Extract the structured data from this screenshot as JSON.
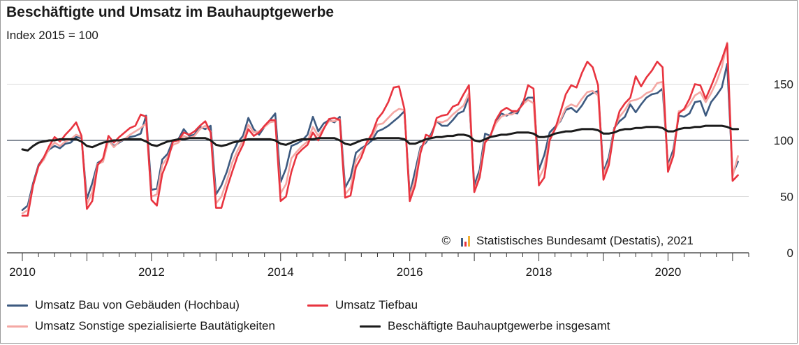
{
  "chart_data": {
    "type": "line",
    "title": "Beschäftigte und Umsatz im Bauhauptgewerbe",
    "subtitle": "Index 2015 = 100",
    "source": "Statistisches Bundesamt (Destatis), 2021",
    "copyright_symbol": "©",
    "x_tick_labels": [
      "2010",
      "2012",
      "2014",
      "2016",
      "2018",
      "2020"
    ],
    "xlim": [
      2010.0,
      2021.25
    ],
    "y_ticks": [
      0,
      50,
      100,
      150
    ],
    "ylim": [
      0,
      190
    ],
    "reference_line": 100,
    "grid": "horizontal",
    "legend_position": "bottom",
    "x": [
      2010.0,
      2010.0833,
      2010.1667,
      2010.25,
      2010.3333,
      2010.4167,
      2010.5,
      2010.5833,
      2010.6667,
      2010.75,
      2010.8333,
      2010.9167,
      2011.0,
      2011.0833,
      2011.1667,
      2011.25,
      2011.3333,
      2011.4167,
      2011.5,
      2011.5833,
      2011.6667,
      2011.75,
      2011.8333,
      2011.9167,
      2012.0,
      2012.0833,
      2012.1667,
      2012.25,
      2012.3333,
      2012.4167,
      2012.5,
      2012.5833,
      2012.6667,
      2012.75,
      2012.8333,
      2012.9167,
      2013.0,
      2013.0833,
      2013.1667,
      2013.25,
      2013.3333,
      2013.4167,
      2013.5,
      2013.5833,
      2013.6667,
      2013.75,
      2013.8333,
      2013.9167,
      2014.0,
      2014.0833,
      2014.1667,
      2014.25,
      2014.3333,
      2014.4167,
      2014.5,
      2014.5833,
      2014.6667,
      2014.75,
      2014.8333,
      2014.9167,
      2015.0,
      2015.0833,
      2015.1667,
      2015.25,
      2015.3333,
      2015.4167,
      2015.5,
      2015.5833,
      2015.6667,
      2015.75,
      2015.8333,
      2015.9167,
      2016.0,
      2016.0833,
      2016.1667,
      2016.25,
      2016.3333,
      2016.4167,
      2016.5,
      2016.5833,
      2016.6667,
      2016.75,
      2016.8333,
      2016.9167,
      2017.0,
      2017.0833,
      2017.1667,
      2017.25,
      2017.3333,
      2017.4167,
      2017.5,
      2017.5833,
      2017.6667,
      2017.75,
      2017.8333,
      2017.9167,
      2018.0,
      2018.0833,
      2018.1667,
      2018.25,
      2018.3333,
      2018.4167,
      2018.5,
      2018.5833,
      2018.6667,
      2018.75,
      2018.8333,
      2018.9167,
      2019.0,
      2019.0833,
      2019.1667,
      2019.25,
      2019.3333,
      2019.4167,
      2019.5,
      2019.5833,
      2019.6667,
      2019.75,
      2019.8333,
      2019.9167,
      2020.0,
      2020.0833,
      2020.1667,
      2020.25,
      2020.3333,
      2020.4167,
      2020.5,
      2020.5833,
      2020.6667,
      2020.75,
      2020.8333,
      2020.9167,
      2021.0,
      2021.0833
    ],
    "series": [
      {
        "name": "Umsatz Bau von Gebäuden (Hochbau)",
        "color": "#3d5a80",
        "values": [
          38,
          42,
          62,
          78,
          85,
          92,
          95,
          93,
          97,
          98,
          103,
          102,
          48,
          62,
          80,
          83,
          100,
          95,
          98,
          101,
          103,
          104,
          106,
          122,
          56,
          57,
          83,
          88,
          100,
          101,
          110,
          104,
          105,
          112,
          110,
          113,
          52,
          60,
          72,
          88,
          98,
          104,
          120,
          110,
          105,
          112,
          118,
          124,
          63,
          75,
          95,
          97,
          100,
          105,
          121,
          108,
          115,
          118,
          116,
          121,
          58,
          67,
          89,
          93,
          96,
          100,
          108,
          110,
          113,
          117,
          121,
          126,
          52,
          73,
          94,
          98,
          106,
          117,
          113,
          113,
          118,
          124,
          126,
          139,
          60,
          74,
          106,
          104,
          117,
          124,
          122,
          125,
          124,
          134,
          138,
          138,
          74,
          87,
          107,
          112,
          117,
          127,
          129,
          125,
          131,
          139,
          142,
          144,
          72,
          85,
          111,
          117,
          121,
          132,
          125,
          132,
          138,
          141,
          142,
          146,
          78,
          92,
          122,
          121,
          124,
          134,
          135,
          122,
          134,
          140,
          147,
          168,
          70,
          81
        ]
      },
      {
        "name": "Umsatz Tiefbau",
        "color": "#e8343f",
        "values": [
          33,
          33,
          60,
          77,
          85,
          95,
          103,
          99,
          105,
          110,
          116,
          104,
          39,
          46,
          78,
          84,
          104,
          98,
          103,
          107,
          111,
          113,
          123,
          121,
          47,
          42,
          70,
          82,
          99,
          100,
          107,
          105,
          108,
          113,
          117,
          107,
          40,
          40,
          57,
          72,
          86,
          96,
          110,
          104,
          107,
          113,
          118,
          118,
          46,
          50,
          72,
          87,
          92,
          96,
          107,
          100,
          110,
          119,
          120,
          118,
          49,
          51,
          76,
          85,
          98,
          106,
          119,
          125,
          134,
          147,
          148,
          128,
          46,
          60,
          89,
          105,
          103,
          120,
          122,
          123,
          130,
          132,
          141,
          149,
          54,
          67,
          98,
          104,
          118,
          126,
          129,
          126,
          126,
          132,
          149,
          146,
          60,
          67,
          100,
          110,
          125,
          141,
          149,
          147,
          160,
          170,
          165,
          149,
          65,
          78,
          109,
          126,
          133,
          138,
          157,
          148,
          156,
          162,
          170,
          165,
          72,
          86,
          124,
          128,
          137,
          150,
          149,
          137,
          148,
          160,
          172,
          186,
          64,
          69
        ]
      },
      {
        "name": "Umsatz Sonstige spezialisierte Bautätigkeiten",
        "color": "#f4a8a4",
        "values": [
          35,
          38,
          60,
          77,
          83,
          93,
          98,
          95,
          99,
          101,
          105,
          103,
          43,
          54,
          79,
          81,
          100,
          94,
          99,
          101,
          105,
          108,
          111,
          115,
          50,
          52,
          78,
          85,
          96,
          98,
          104,
          102,
          104,
          110,
          113,
          108,
          44,
          50,
          64,
          80,
          91,
          100,
          114,
          107,
          108,
          112,
          116,
          117,
          53,
          61,
          84,
          90,
          95,
          99,
          112,
          104,
          111,
          117,
          117,
          119,
          52,
          58,
          82,
          89,
          97,
          103,
          114,
          115,
          120,
          125,
          128,
          127,
          49,
          66,
          92,
          100,
          104,
          117,
          116,
          118,
          123,
          127,
          131,
          142,
          55,
          70,
          101,
          104,
          115,
          121,
          123,
          123,
          126,
          132,
          136,
          133,
          66,
          76,
          103,
          110,
          118,
          129,
          132,
          130,
          137,
          143,
          144,
          140,
          70,
          81,
          110,
          121,
          127,
          135,
          136,
          138,
          142,
          144,
          151,
          152,
          76,
          88,
          126,
          127,
          132,
          140,
          143,
          134,
          142,
          152,
          165,
          187,
          68,
          86
        ]
      },
      {
        "name": "Beschäftigte Bauhauptgewerbe insgesamt",
        "color": "#1b1b1b",
        "values": [
          92,
          91,
          95,
          98,
          99,
          100,
          100,
          101,
          101,
          101,
          101,
          99,
          95,
          94,
          96,
          98,
          99,
          100,
          100,
          101,
          101,
          101,
          101,
          99,
          96,
          95,
          97,
          99,
          100,
          101,
          101,
          102,
          102,
          102,
          102,
          100,
          96,
          95,
          96,
          98,
          99,
          100,
          101,
          101,
          101,
          101,
          101,
          100,
          97,
          96,
          98,
          100,
          101,
          101,
          101,
          102,
          102,
          102,
          102,
          100,
          97,
          96,
          98,
          100,
          101,
          101,
          102,
          102,
          102,
          102,
          102,
          101,
          97,
          97,
          99,
          101,
          102,
          103,
          103,
          104,
          104,
          105,
          105,
          104,
          100,
          99,
          101,
          103,
          104,
          105,
          105,
          106,
          107,
          107,
          107,
          106,
          103,
          103,
          104,
          106,
          107,
          108,
          108,
          109,
          110,
          110,
          110,
          109,
          106,
          106,
          107,
          109,
          110,
          110,
          111,
          111,
          112,
          112,
          112,
          111,
          108,
          108,
          110,
          111,
          111,
          112,
          112,
          113,
          113,
          113,
          113,
          112,
          110,
          110
        ]
      }
    ]
  }
}
